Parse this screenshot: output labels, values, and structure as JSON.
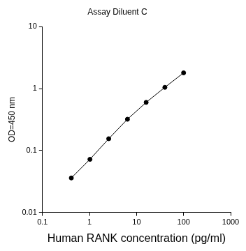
{
  "chart_data": {
    "type": "line",
    "title": "Assay Diluent C",
    "x_label": "Human RANK concentration (pg/ml)",
    "y_label": "OD=450 nm",
    "x": [
      0.41,
      1.02,
      2.56,
      6.4,
      16,
      40,
      100
    ],
    "values": [
      0.036,
      0.072,
      0.155,
      0.32,
      0.6,
      1.05,
      1.8
    ],
    "color": "#000000",
    "marker": "circle",
    "line_style": "solid",
    "log": true,
    "grid": false,
    "xlim": [
      0.1,
      1000
    ],
    "xticks": [
      0.1,
      1,
      10,
      100,
      1000
    ],
    "ylim": [
      0.01,
      10
    ],
    "yticks": [
      0.01,
      0.1,
      1,
      10
    ]
  }
}
